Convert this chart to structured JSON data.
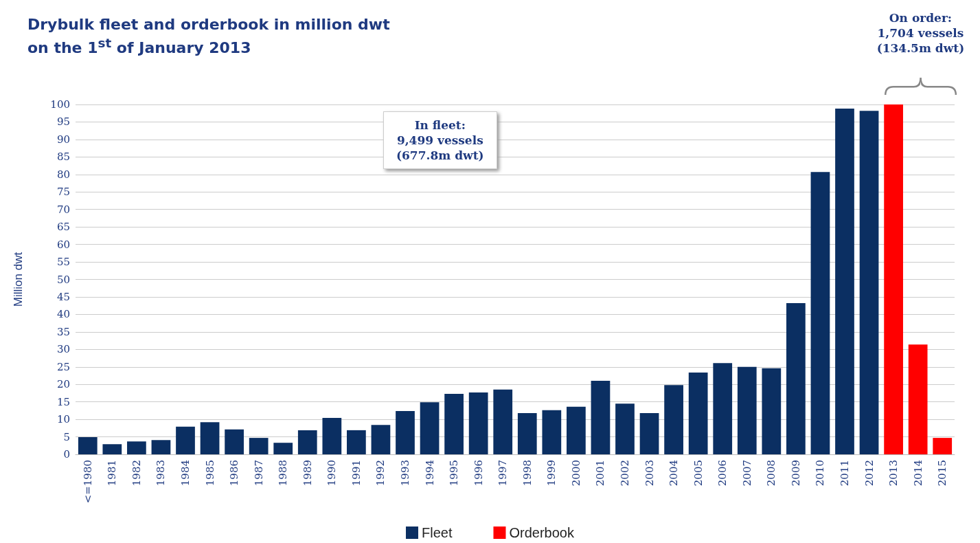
{
  "chart_data": {
    "type": "bar",
    "title": "Drybulk fleet and orderbook in million dwt\non the 1$^{st}$ of January 2013",
    "ylabel": "Million dwt",
    "categories": [
      "<=1980",
      "1981",
      "1982",
      "1983",
      "1984",
      "1985",
      "1986",
      "1987",
      "1988",
      "1989",
      "1990",
      "1991",
      "1992",
      "1993",
      "1994",
      "1995",
      "1996",
      "1997",
      "1998",
      "1999",
      "2000",
      "2001",
      "2002",
      "2003",
      "2004",
      "2005",
      "2006",
      "2007",
      "2008",
      "2009",
      "2010",
      "2011",
      "2012",
      "2013",
      "2014",
      "2015"
    ],
    "series": [
      {
        "name": "Fleet",
        "color": "#0b2f62",
        "values": [
          4.9,
          2.9,
          3.7,
          4.1,
          7.9,
          9.2,
          7.1,
          4.7,
          3.3,
          6.9,
          10.4,
          6.9,
          8.4,
          12.4,
          14.9,
          17.3,
          17.7,
          18.5,
          11.8,
          12.6,
          13.6,
          21.0,
          14.5,
          11.8,
          19.8,
          23.4,
          26.1,
          25.0,
          24.6,
          43.2,
          80.7,
          98.8,
          98.2,
          null,
          null,
          null
        ]
      },
      {
        "name": "Orderbook",
        "color": "#ff0000",
        "values": [
          null,
          null,
          null,
          null,
          null,
          null,
          null,
          null,
          null,
          null,
          null,
          null,
          null,
          null,
          null,
          null,
          null,
          null,
          null,
          null,
          null,
          null,
          null,
          null,
          null,
          null,
          null,
          null,
          null,
          null,
          null,
          null,
          null,
          100,
          31.4,
          4.7
        ]
      }
    ],
    "stacked": true,
    "ylim": [
      0,
      100
    ],
    "yticks": [
      0,
      5,
      10,
      15,
      20,
      25,
      30,
      35,
      40,
      45,
      50,
      55,
      60,
      65,
      70,
      75,
      80,
      85,
      90,
      95,
      100
    ],
    "grid": "y",
    "legend": "bottom",
    "annotations": [
      "In fleet:\n9,499 vessels\n(677.8m dwt)",
      "On order:\n1,704 vessels\n(134.5m dwt)"
    ]
  }
}
